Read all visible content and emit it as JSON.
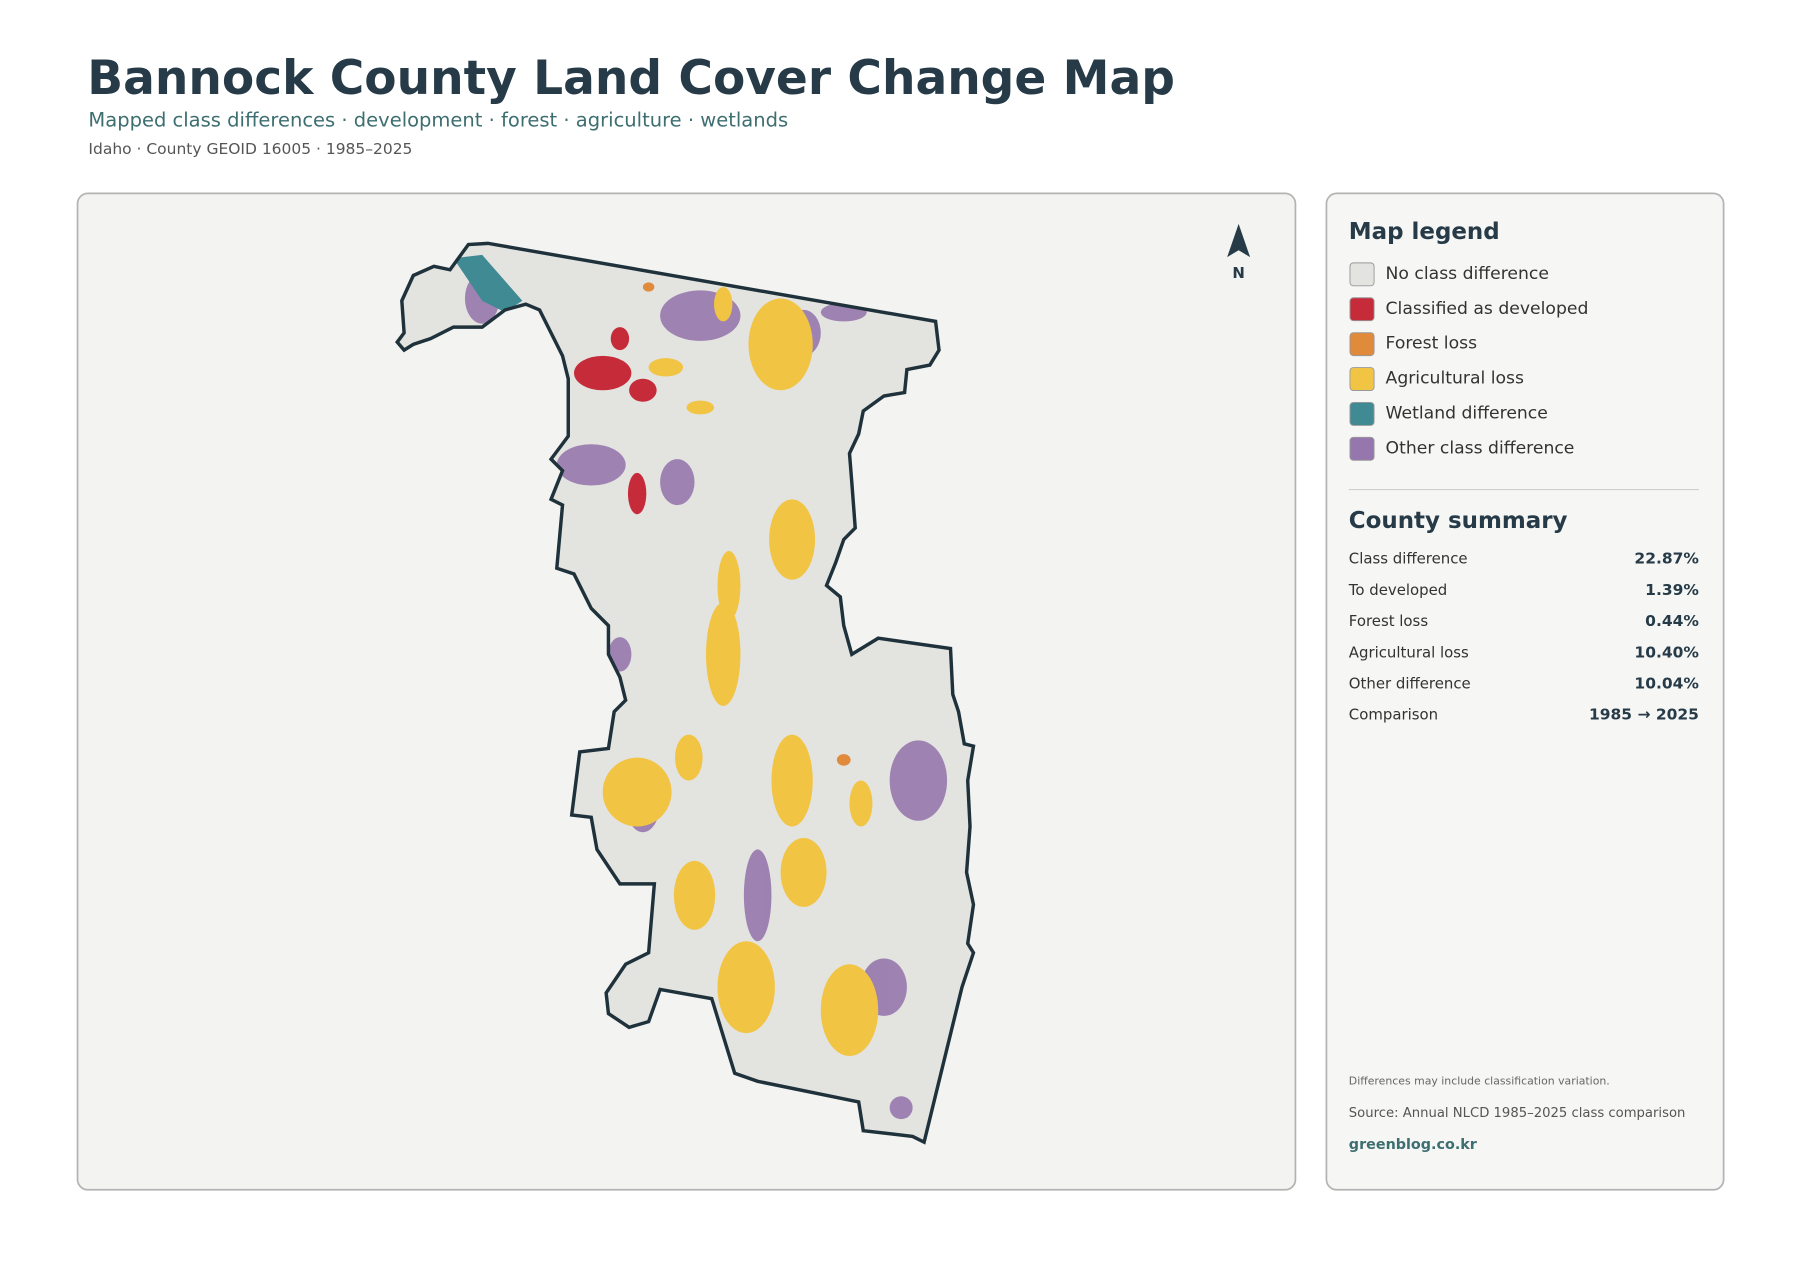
{
  "header": {
    "title": "Bannock County Land Cover Change Map",
    "subtitle": "Mapped class differences · development · forest · agriculture · wetlands",
    "meta": "Idaho · County GEOID 16005 · 1985–2025"
  },
  "map": {
    "north_label": "N"
  },
  "legend": {
    "title": "Map legend",
    "items": [
      {
        "label": "No class difference",
        "color": "#e3e3e0"
      },
      {
        "label": "Classified as developed",
        "color": "#c62b3a"
      },
      {
        "label": "Forest loss",
        "color": "#e08a3c"
      },
      {
        "label": "Agricultural loss",
        "color": "#f2c444"
      },
      {
        "label": "Wetland difference",
        "color": "#3f8a93"
      },
      {
        "label": "Other class difference",
        "color": "#9677ad"
      }
    ]
  },
  "summary": {
    "title": "County summary",
    "rows": [
      {
        "label": "Class difference",
        "value": "22.87%"
      },
      {
        "label": "To developed",
        "value": "1.39%"
      },
      {
        "label": "Forest loss",
        "value": "0.44%"
      },
      {
        "label": "Agricultural loss",
        "value": "10.40%"
      },
      {
        "label": "Other difference",
        "value": "10.04%"
      },
      {
        "label": "Comparison",
        "value": "1985 → 2025"
      }
    ]
  },
  "footer": {
    "note": "Differences may include classification variation.",
    "source": "Source: Annual NLCD 1985–2025 class comparison",
    "credit": "greenblog.co.kr"
  }
}
